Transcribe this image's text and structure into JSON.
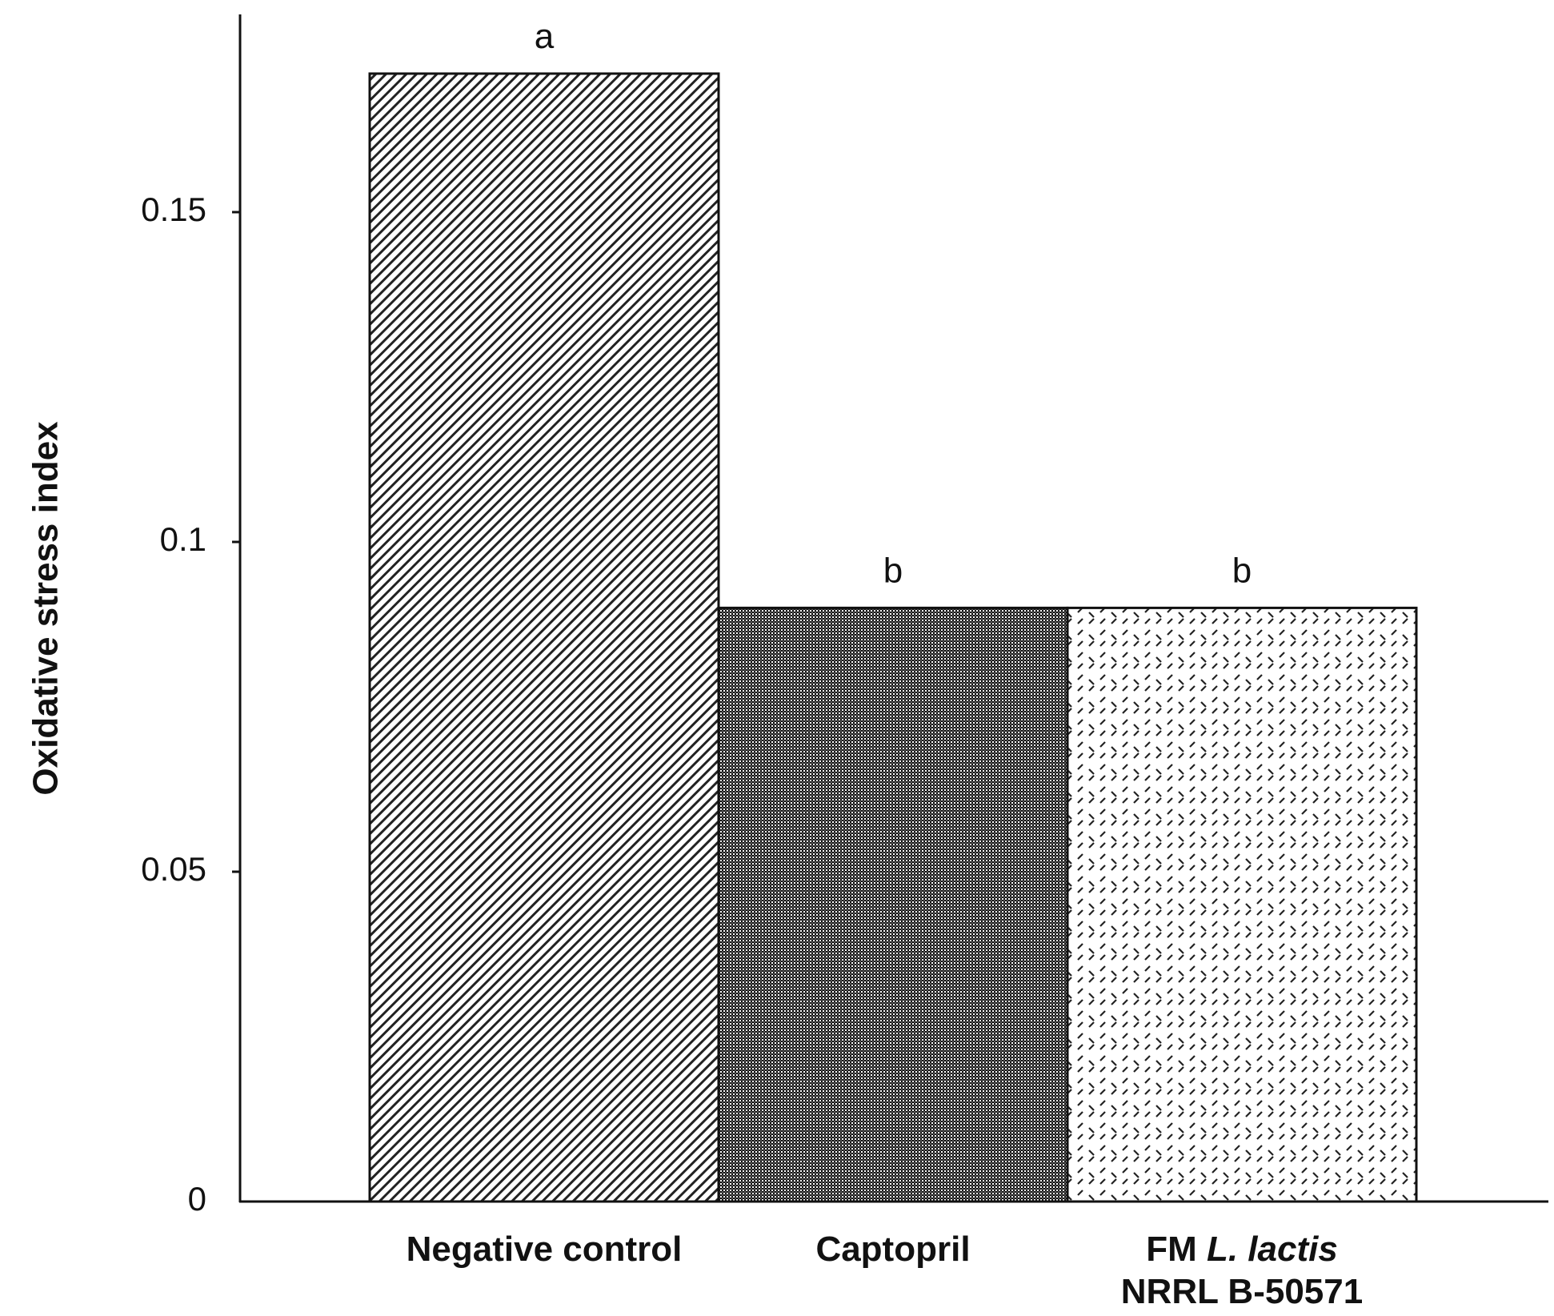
{
  "chart_data": {
    "type": "bar",
    "categories": [
      {
        "parts": [
          {
            "text": "Negative control",
            "italic": false
          }
        ],
        "line2": ""
      },
      {
        "parts": [
          {
            "text": "Captopril",
            "italic": false
          }
        ],
        "line2": ""
      },
      {
        "parts": [
          {
            "text": "FM ",
            "italic": false
          },
          {
            "text": "L. lactis",
            "italic": true
          }
        ],
        "line2": "NRRL B-50571"
      }
    ],
    "values": [
      0.171,
      0.09,
      0.09
    ],
    "significance": [
      "a",
      "b",
      "b"
    ],
    "patterns": [
      "diagonal-lines",
      "dense-checker",
      "dotted-hatch"
    ],
    "ylabel": "Oxidative stress index",
    "xlabel": "",
    "title": "",
    "ylim": [
      0,
      0.18
    ],
    "yticks": [
      {
        "value": 0,
        "label": "0"
      },
      {
        "value": 0.05,
        "label": "0.05"
      },
      {
        "value": 0.1,
        "label": "0.1"
      },
      {
        "value": 0.15,
        "label": "0.15"
      }
    ],
    "grid": false,
    "legend": "none",
    "colors": {
      "ink": "#111111",
      "background": "#ffffff"
    }
  }
}
